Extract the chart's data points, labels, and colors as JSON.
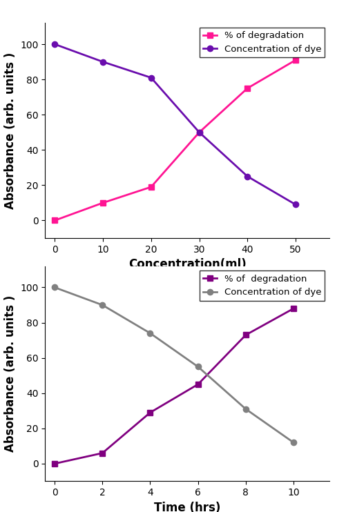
{
  "top": {
    "x": [
      0,
      10,
      20,
      30,
      40,
      50
    ],
    "degradation_y": [
      0,
      10,
      19,
      50,
      75,
      91
    ],
    "concentration_y": [
      100,
      90,
      81,
      50,
      25,
      9
    ],
    "degradation_color": "#FF1493",
    "concentration_color": "#6A0DAD",
    "degradation_label": "% of degradation",
    "concentration_label": "Concentration of dye",
    "degradation_marker": "s",
    "concentration_marker": "o",
    "xlabel": "Concentration(ml)",
    "ylabel": "Absorbance (arb. units )",
    "ylim": [
      -10,
      112
    ],
    "xlim": [
      -2,
      57
    ],
    "xticks": [
      0,
      10,
      20,
      30,
      40,
      50
    ],
    "yticks": [
      0,
      20,
      40,
      60,
      80,
      100
    ]
  },
  "bottom": {
    "x": [
      0,
      2,
      4,
      6,
      8,
      10
    ],
    "degradation_y": [
      0,
      6,
      29,
      45,
      73,
      88
    ],
    "concentration_y": [
      100,
      90,
      74,
      55,
      31,
      12
    ],
    "degradation_color": "#800080",
    "concentration_color": "#808080",
    "degradation_label": "% of  degradation",
    "concentration_label": "Concentration of dye",
    "degradation_marker": "s",
    "concentration_marker": "o",
    "xlabel": "Time (hrs)",
    "ylabel": "Absorbance (arb. units )",
    "ylim": [
      -10,
      112
    ],
    "xlim": [
      -0.4,
      11.5
    ],
    "xticks": [
      0,
      2,
      4,
      6,
      8,
      10
    ],
    "yticks": [
      0,
      20,
      40,
      60,
      80,
      100
    ]
  },
  "markersize": 6,
  "linewidth": 2.0,
  "legend_fontsize": 9.5,
  "axis_label_fontsize": 12,
  "tick_fontsize": 10,
  "background_color": "#ffffff"
}
